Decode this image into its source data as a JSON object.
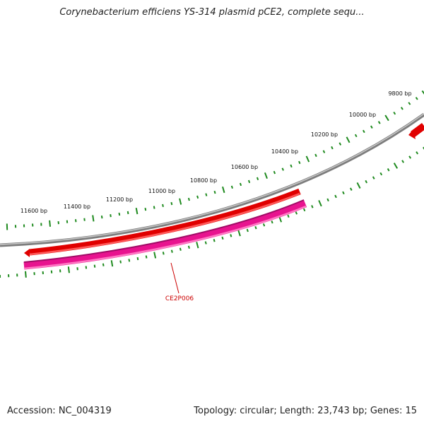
{
  "title": "Corynebacterium efficiens YS-314 plasmid pCE2, complete sequ...",
  "footer": {
    "accession": "Accession: NC_004319",
    "topology": "Topology: circular; Length: 23,743 bp; Genes: 15"
  },
  "colors": {
    "backbone": "#8a8a8a",
    "forward_gene": "#e00000",
    "reverse_gene": "#e8138f",
    "ticks": "#1e8a1e",
    "label": "#cc0000"
  },
  "tick_labels": [
    "9800 bp",
    "10000 bp",
    "10200 bp",
    "10400 bp",
    "10600 bp",
    "10800 bp",
    "11000 bp",
    "11200 bp",
    "11400 bp",
    "11600 bp"
  ],
  "gene_label": "CE2P006"
}
